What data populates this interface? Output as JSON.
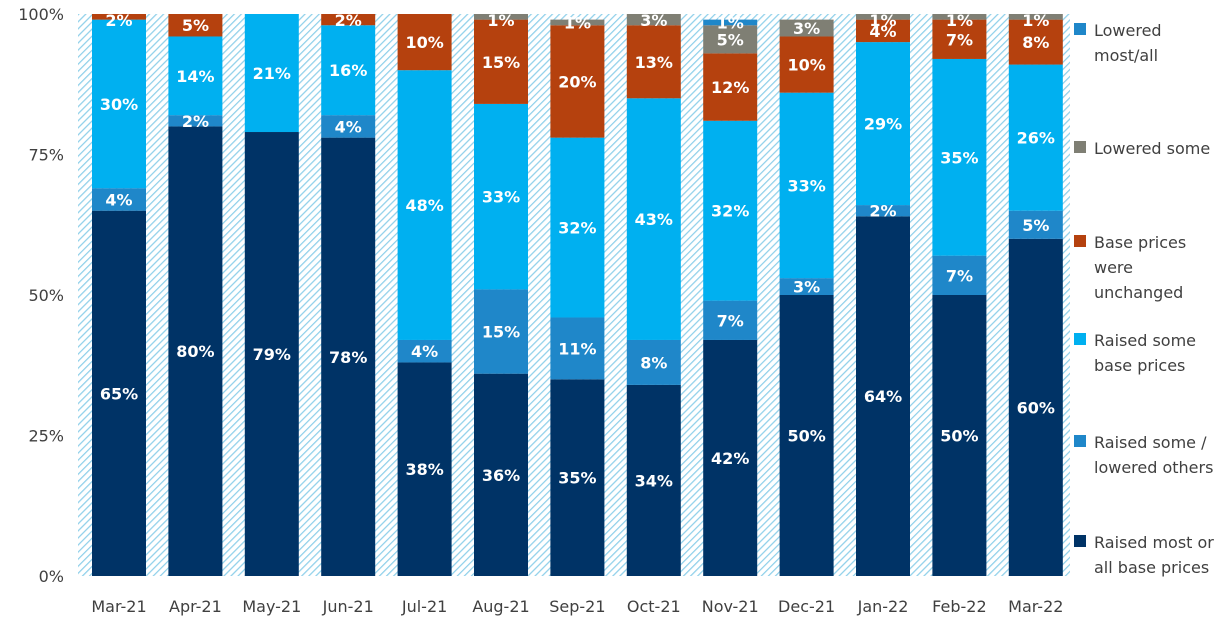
{
  "chart_data": {
    "type": "bar",
    "stacked": true,
    "title": "",
    "xlabel": "",
    "ylabel": "",
    "ylim": [
      0,
      100
    ],
    "y_ticks": [
      "0%",
      "25%",
      "50%",
      "75%",
      "100%"
    ],
    "grid": false,
    "legend_position": "right",
    "categories": [
      "Mar-21",
      "Apr-21",
      "May-21",
      "Jun-21",
      "Jul-21",
      "Aug-21",
      "Sep-21",
      "Oct-21",
      "Nov-21",
      "Dec-21",
      "Jan-22",
      "Feb-22",
      "Mar-22"
    ],
    "series": [
      {
        "name": "Raised most or all base prices",
        "color": "#003366",
        "values": [
          65,
          80,
          79,
          78,
          38,
          36,
          35,
          34,
          42,
          50,
          64,
          50,
          60
        ],
        "labels": [
          "65%",
          "80%",
          "79%",
          "78%",
          "38%",
          "36%",
          "35%",
          "34%",
          "42%",
          "50%",
          "64%",
          "50%",
          "60%"
        ]
      },
      {
        "name": "Raised some / lowered others",
        "color": "#1f87c9",
        "values": [
          4,
          2,
          0,
          4,
          4,
          15,
          11,
          8,
          7,
          3,
          2,
          7,
          5
        ],
        "labels": [
          "4%",
          "2%",
          "",
          "4%",
          "4%",
          "15%",
          "11%",
          "8%",
          "7%",
          "3%",
          "2%",
          "7%",
          "5%"
        ]
      },
      {
        "name": "Raised some base prices",
        "color": "#00b0f0",
        "values": [
          30,
          14,
          21,
          16,
          48,
          33,
          32,
          43,
          32,
          33,
          29,
          35,
          26
        ],
        "labels": [
          "30%",
          "14%",
          "21%",
          "16%",
          "48%",
          "33%",
          "32%",
          "43%",
          "32%",
          "33%",
          "29%",
          "35%",
          "26%"
        ]
      },
      {
        "name": "Base prices were unchanged",
        "color": "#b5410e",
        "values": [
          2,
          5,
          0,
          2,
          10,
          15,
          20,
          13,
          12,
          10,
          4,
          7,
          8
        ],
        "labels": [
          "2%",
          "5%",
          "",
          "2%",
          "10%",
          "15%",
          "20%",
          "13%",
          "12%",
          "10%",
          "4%",
          "7%",
          "8%"
        ]
      },
      {
        "name": "Lowered some",
        "color": "#7f7f74",
        "values": [
          0,
          0,
          0,
          0,
          0,
          1,
          1,
          3,
          5,
          3,
          1,
          1,
          1
        ],
        "labels": [
          "",
          "",
          "",
          "",
          "",
          "1%",
          "1%",
          "3%",
          "5%",
          "3%",
          "1%",
          "1%",
          "1%"
        ]
      },
      {
        "name": "Lowered most/all",
        "color": "#1f87c9",
        "values": [
          0,
          0,
          0,
          0,
          0,
          0,
          0,
          0,
          1,
          0,
          0,
          0,
          0
        ],
        "labels": [
          "",
          "",
          "",
          "",
          "",
          "",
          "",
          "",
          "1%",
          "",
          "",
          "",
          ""
        ]
      }
    ]
  },
  "legend": [
    {
      "label": "Lowered most/all",
      "color": "#1f87c9"
    },
    {
      "label": "Lowered some",
      "color": "#7f7f74"
    },
    {
      "label": "Base prices were unchanged",
      "color": "#b5410e"
    },
    {
      "label": "Raised some base prices",
      "color": "#00b0f0"
    },
    {
      "label": "Raised some / lowered others",
      "color": "#1f87c9"
    },
    {
      "label": "Raised most or all base prices",
      "color": "#003366"
    }
  ]
}
